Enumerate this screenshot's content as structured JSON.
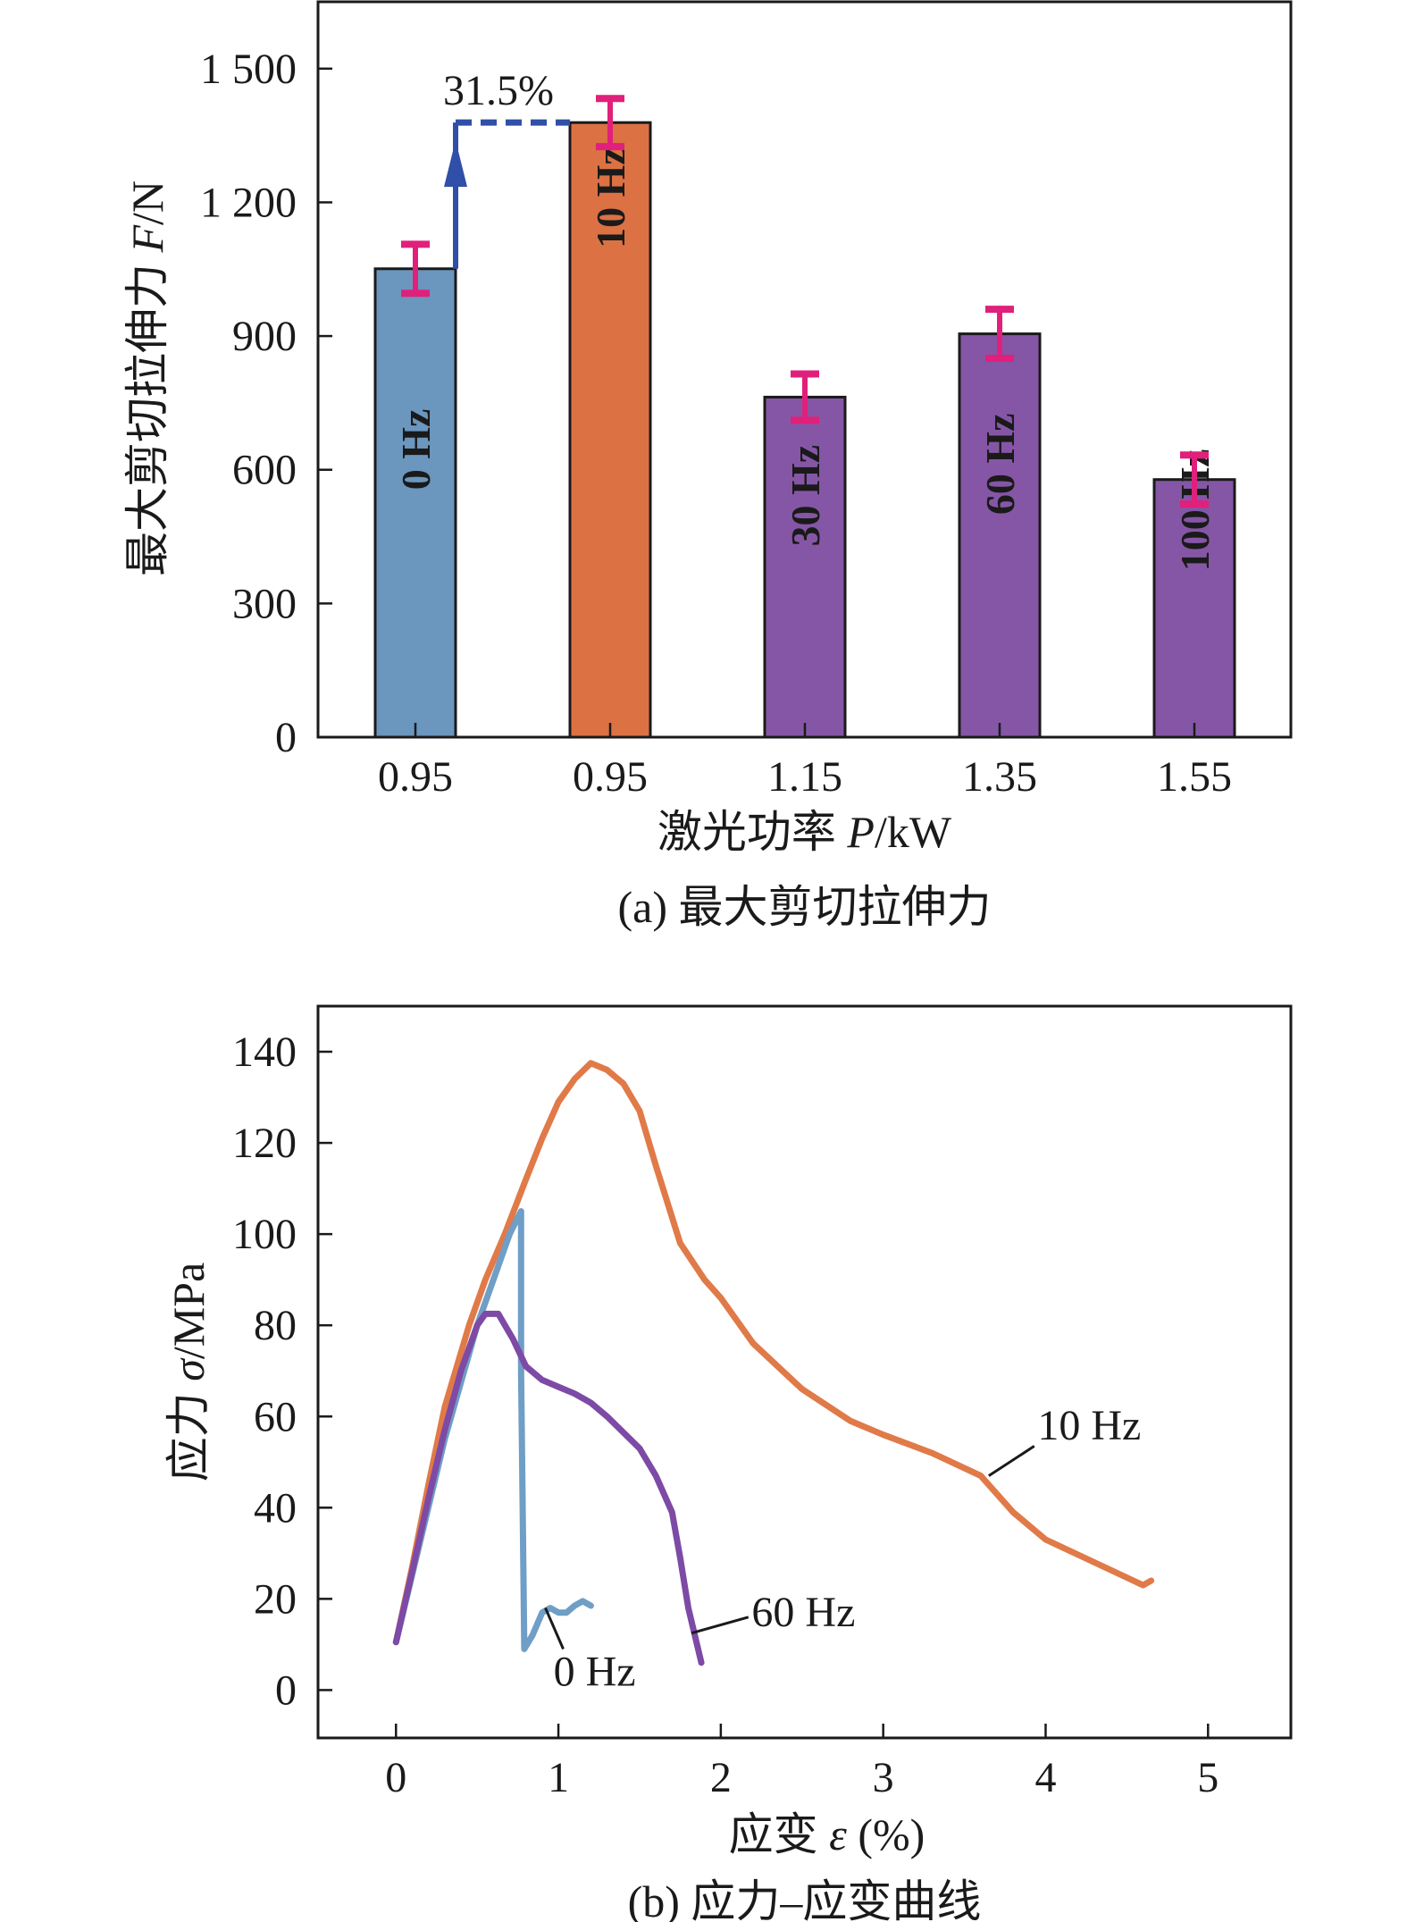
{
  "chart_data": [
    {
      "type": "bar",
      "caption": "(a) 最大剪切拉伸力",
      "xlabel": {
        "text": "激光功率 ",
        "italic": "P",
        "unit": "/kW"
      },
      "ylabel": {
        "text": "最大剪切拉伸力 ",
        "italic": "F",
        "unit": "/N"
      },
      "categories": [
        "0.95",
        "0.95",
        "1.15",
        "1.35",
        "1.55"
      ],
      "bar_labels": [
        "0 Hz",
        "10 Hz",
        "30 Hz",
        "60 Hz",
        "100 Hz"
      ],
      "values": [
        1051,
        1379,
        763,
        905,
        578
      ],
      "errors": [
        55,
        54,
        52,
        55,
        55
      ],
      "colors": [
        "#6b96bd",
        "#dc7144",
        "#8556a6",
        "#8556a6",
        "#8556a6"
      ],
      "error_color": "#e0207a",
      "ylim": [
        0,
        1650
      ],
      "yticks": [
        0,
        300,
        600,
        900,
        1200,
        1500
      ],
      "ytick_labels": [
        "0",
        "300",
        "600",
        "900",
        "1 200",
        "1 500"
      ],
      "annotation": {
        "text": "31.5%",
        "color": "#2f4fa8"
      }
    },
    {
      "type": "line",
      "caption": "(b) 应力–应变曲线",
      "xlabel": {
        "text": "应变 ",
        "italic": "ε",
        "unit": " (%)"
      },
      "ylabel": {
        "text": "应力 ",
        "italic": "σ",
        "unit": "/MPa"
      },
      "xlim": [
        -0.48,
        5.51
      ],
      "ylim": [
        -10.5,
        150
      ],
      "xticks": [
        0,
        1,
        2,
        3,
        4,
        5
      ],
      "xtick_labels": [
        "0",
        "1",
        "2",
        "3",
        "4",
        "5"
      ],
      "yticks": [
        0,
        20,
        40,
        60,
        80,
        100,
        120,
        140
      ],
      "ytick_labels": [
        "0",
        "20",
        "40",
        "60",
        "80",
        "100",
        "120",
        "140"
      ],
      "series": [
        {
          "name": "10 Hz",
          "color": "#e07a48",
          "points": [
            [
              0,
              10.5
            ],
            [
              0.1,
              27
            ],
            [
              0.2,
              45
            ],
            [
              0.3,
              62
            ],
            [
              0.45,
              80
            ],
            [
              0.55,
              90
            ],
            [
              0.67,
              100
            ],
            [
              0.8,
              112
            ],
            [
              0.9,
              121
            ],
            [
              1.0,
              129
            ],
            [
              1.1,
              134
            ],
            [
              1.2,
              137.5
            ],
            [
              1.3,
              136
            ],
            [
              1.4,
              133
            ],
            [
              1.5,
              127
            ],
            [
              1.6,
              115
            ],
            [
              1.75,
              98
            ],
            [
              1.9,
              90
            ],
            [
              2.0,
              86
            ],
            [
              2.2,
              76
            ],
            [
              2.5,
              66
            ],
            [
              2.8,
              59
            ],
            [
              3.0,
              56
            ],
            [
              3.3,
              52
            ],
            [
              3.6,
              47
            ],
            [
              3.8,
              39
            ],
            [
              4.0,
              33
            ],
            [
              4.3,
              28
            ],
            [
              4.6,
              23
            ],
            [
              4.65,
              24
            ]
          ]
        },
        {
          "name": "0 Hz",
          "color": "#6f9ec6",
          "points": [
            [
              0,
              10.5
            ],
            [
              0.3,
              55
            ],
            [
              0.5,
              80
            ],
            [
              0.6,
              90
            ],
            [
              0.7,
              100
            ],
            [
              0.77,
              105
            ],
            [
              0.77,
              70
            ],
            [
              0.79,
              9
            ],
            [
              0.84,
              12
            ],
            [
              0.9,
              17
            ],
            [
              0.95,
              18
            ],
            [
              1.0,
              17
            ],
            [
              1.05,
              17
            ],
            [
              1.1,
              18.5
            ],
            [
              1.15,
              19.5
            ],
            [
              1.2,
              18.5
            ]
          ]
        },
        {
          "name": "60 Hz",
          "color": "#7d4aa5",
          "points": [
            [
              0,
              10.5
            ],
            [
              0.1,
              26
            ],
            [
              0.2,
              42
            ],
            [
              0.3,
              57
            ],
            [
              0.4,
              70
            ],
            [
              0.5,
              80
            ],
            [
              0.55,
              82.5
            ],
            [
              0.63,
              82.5
            ],
            [
              0.72,
              77
            ],
            [
              0.8,
              71
            ],
            [
              0.9,
              68
            ],
            [
              1.0,
              66.5
            ],
            [
              1.1,
              65
            ],
            [
              1.2,
              63
            ],
            [
              1.3,
              60
            ],
            [
              1.4,
              56.5
            ],
            [
              1.5,
              53
            ],
            [
              1.6,
              47
            ],
            [
              1.7,
              39
            ],
            [
              1.75,
              29
            ],
            [
              1.8,
              18
            ],
            [
              1.88,
              6
            ]
          ]
        }
      ],
      "series_labels": [
        {
          "text": "10 Hz",
          "at": [
            3.95,
            55
          ],
          "from": [
            3.65,
            47
          ],
          "to": [
            3.93,
            53.5
          ]
        },
        {
          "text": "60 Hz",
          "at": [
            2.19,
            14
          ],
          "from": [
            1.82,
            12.5
          ],
          "to": [
            2.17,
            16
          ]
        },
        {
          "text": "0 Hz",
          "at": [
            0.97,
            1
          ],
          "from": [
            0.92,
            18
          ],
          "to": [
            1.03,
            9
          ]
        }
      ]
    }
  ]
}
